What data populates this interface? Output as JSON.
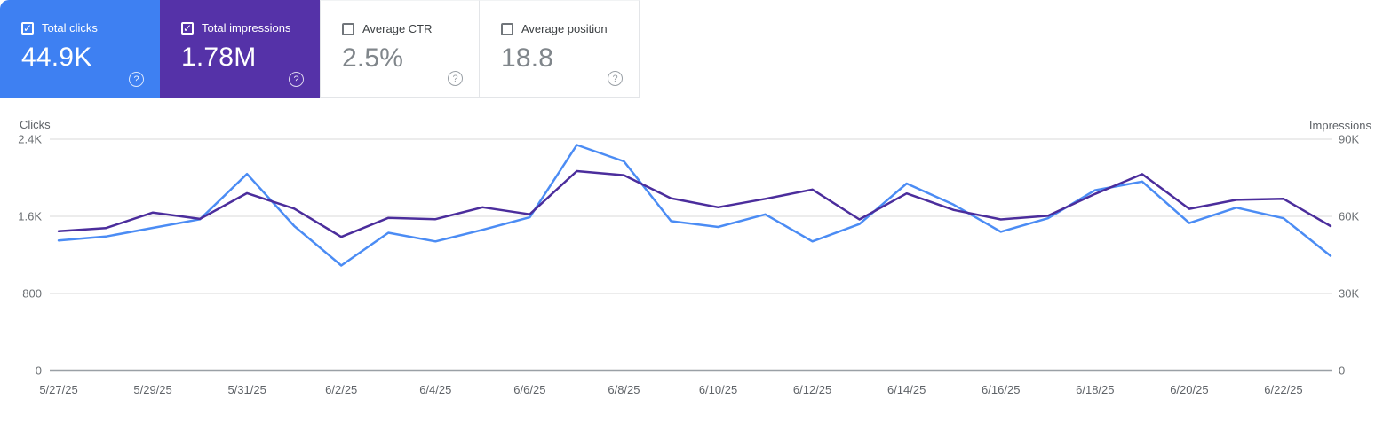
{
  "cards": [
    {
      "label": "Total clicks",
      "value": "44.9K",
      "checked": true,
      "bg": "#3e80f2"
    },
    {
      "label": "Total impressions",
      "value": "1.78M",
      "checked": true,
      "bg": "#5532a8"
    },
    {
      "label": "Average CTR",
      "value": "2.5%",
      "checked": false,
      "bg": "#ffffff"
    },
    {
      "label": "Average position",
      "value": "18.8",
      "checked": false,
      "bg": "#ffffff"
    }
  ],
  "icons": {
    "help": "?",
    "check": "✓"
  },
  "chart_data": {
    "type": "line",
    "x": [
      "5/27/25",
      "5/28/25",
      "5/29/25",
      "5/30/25",
      "5/31/25",
      "6/1/25",
      "6/2/25",
      "6/3/25",
      "6/4/25",
      "6/5/25",
      "6/6/25",
      "6/7/25",
      "6/8/25",
      "6/9/25",
      "6/10/25",
      "6/11/25",
      "6/12/25",
      "6/13/25",
      "6/14/25",
      "6/15/25",
      "6/16/25",
      "6/17/25",
      "6/18/25",
      "6/19/25",
      "6/20/25",
      "6/21/25",
      "6/22/25",
      "6/23/25"
    ],
    "x_tick_every": 2,
    "grid": "horizontal",
    "series": [
      {
        "name": "Clicks",
        "axis": "left",
        "color": "#4b8cf4",
        "values": [
          1350,
          1390,
          1480,
          1570,
          2040,
          1500,
          1090,
          1430,
          1340,
          1460,
          1590,
          2340,
          2170,
          1550,
          1490,
          1620,
          1340,
          1520,
          1940,
          1720,
          1440,
          1580,
          1870,
          1960,
          1530,
          1690,
          1580,
          1190
        ]
      },
      {
        "name": "Impressions",
        "axis": "right",
        "color": "#4b2d9c",
        "values": [
          54200,
          55400,
          61500,
          59000,
          69000,
          63000,
          52000,
          59400,
          58900,
          63500,
          60800,
          77600,
          76000,
          67000,
          63500,
          66800,
          70400,
          58800,
          68900,
          62500,
          58800,
          60200,
          68700,
          76400,
          62900,
          66400,
          66800,
          56200
        ]
      }
    ],
    "left_axis": {
      "title": "Clicks",
      "min": 0,
      "max": 2400,
      "ticks": [
        "0",
        "800",
        "1.6K",
        "2.4K"
      ]
    },
    "right_axis": {
      "title": "Impressions",
      "min": 0,
      "max": 90000,
      "ticks": [
        "0",
        "30K",
        "60K",
        "90K"
      ]
    }
  }
}
